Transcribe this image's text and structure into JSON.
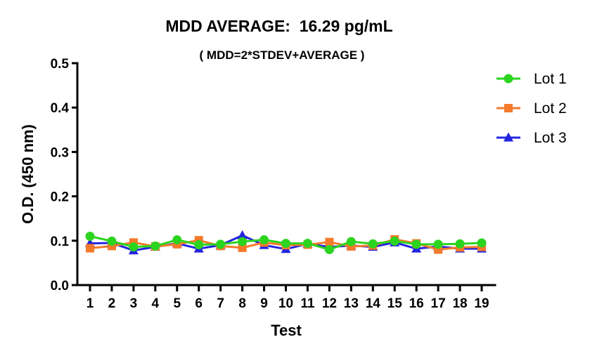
{
  "chart_data": {
    "type": "line",
    "title": "MDD AVERAGE:  16.29 pg/mL",
    "subtitle": "( MDD=2*STDEV+AVERAGE )",
    "xlabel": "Test",
    "ylabel": "O.D. (450 nm)",
    "x": [
      1,
      2,
      3,
      4,
      5,
      6,
      7,
      8,
      9,
      10,
      11,
      12,
      13,
      14,
      15,
      16,
      17,
      18,
      19
    ],
    "x_tick_labels": [
      "1",
      "2",
      "3",
      "4",
      "5",
      "6",
      "7",
      "8",
      "9",
      "10",
      "11",
      "12",
      "13",
      "14",
      "15",
      "16",
      "17",
      "18",
      "19"
    ],
    "ylim": [
      0,
      0.5
    ],
    "y_ticks": [
      0,
      0.1,
      0.2,
      0.3,
      0.4,
      0.5
    ],
    "y_tick_labels": [
      "0.0",
      "0.1",
      "0.2",
      "0.3",
      "0.4",
      "0.5"
    ],
    "grid": false,
    "legend_position": "top-right",
    "series": [
      {
        "name": "Lot 1",
        "color": "#2bd41f",
        "marker": "circle",
        "values": [
          0.11,
          0.099,
          0.086,
          0.088,
          0.102,
          0.091,
          0.092,
          0.098,
          0.102,
          0.094,
          0.094,
          0.08,
          0.098,
          0.093,
          0.099,
          0.092,
          0.092,
          0.093,
          0.095
        ]
      },
      {
        "name": "Lot 2",
        "color": "#f47a2a",
        "marker": "square",
        "values": [
          0.083,
          0.088,
          0.096,
          0.087,
          0.092,
          0.101,
          0.088,
          0.084,
          0.096,
          0.09,
          0.091,
          0.097,
          0.087,
          0.089,
          0.103,
          0.094,
          0.08,
          0.085,
          0.086
        ]
      },
      {
        "name": "Lot 3",
        "color": "#2424e0",
        "marker": "triangle",
        "values": [
          0.094,
          0.095,
          0.078,
          0.086,
          0.094,
          0.082,
          0.09,
          0.112,
          0.09,
          0.081,
          0.093,
          0.086,
          0.089,
          0.086,
          0.096,
          0.082,
          0.087,
          0.082,
          0.082
        ]
      }
    ]
  }
}
